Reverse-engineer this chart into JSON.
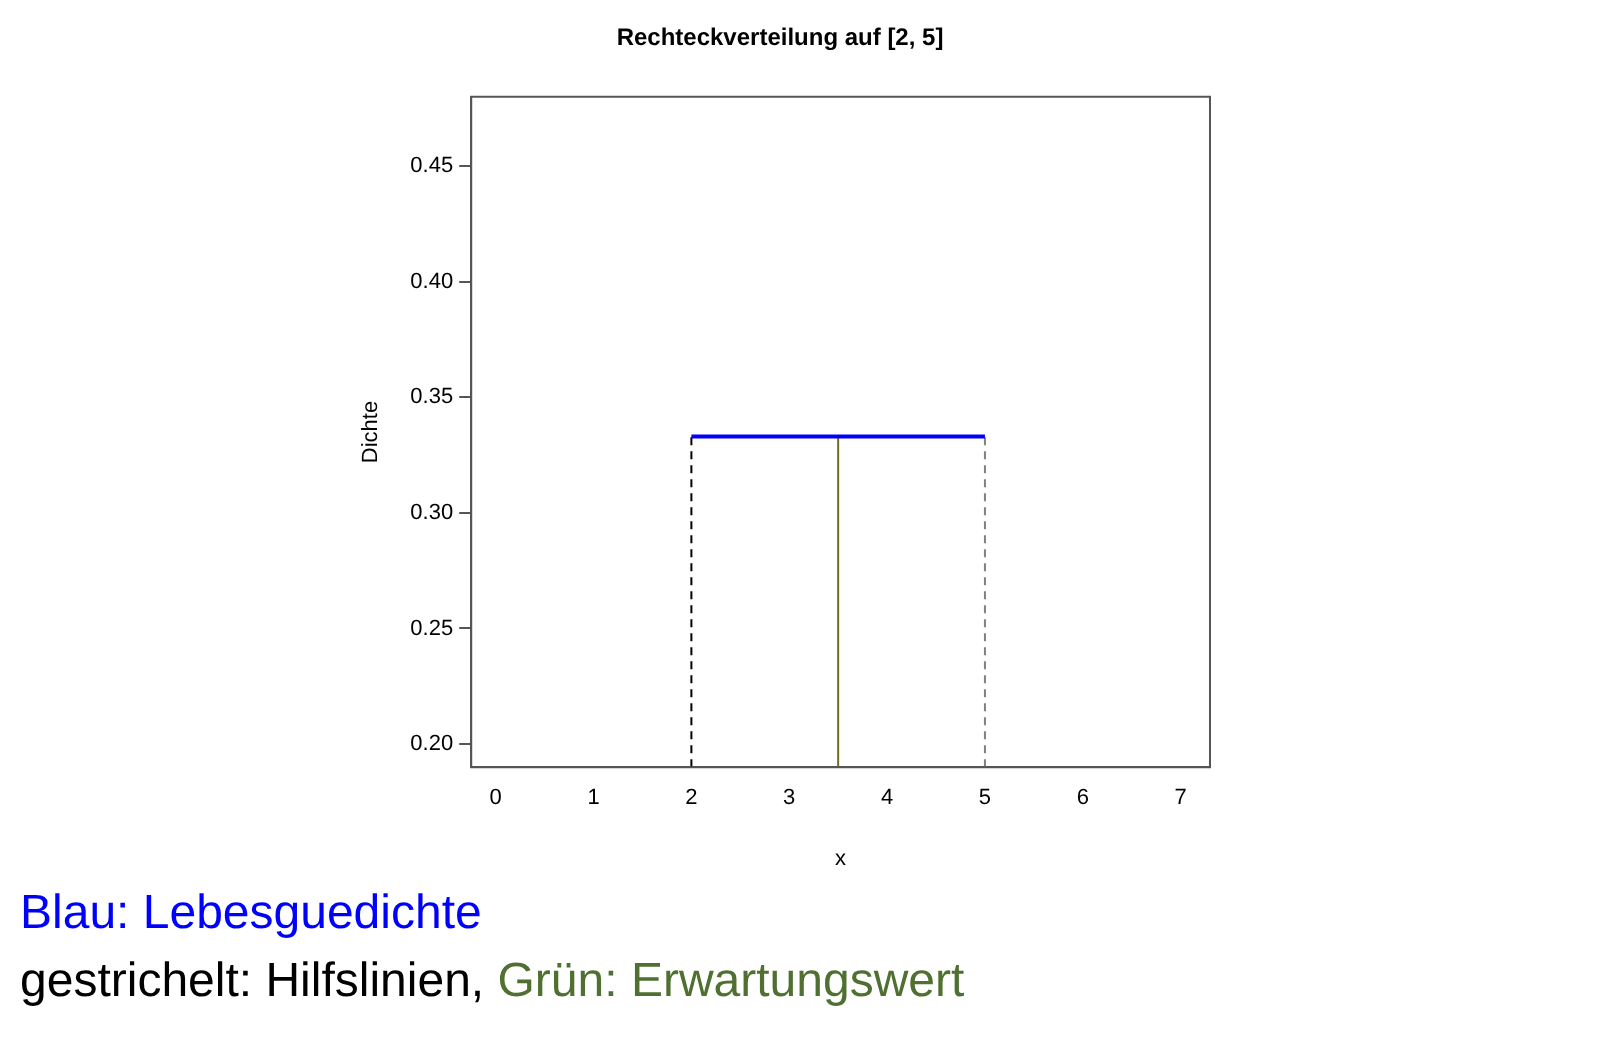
{
  "chart_data": {
    "type": "line",
    "title": "Rechteckverteilung auf [2, 5]",
    "xlabel": "x",
    "ylabel": "Dichte",
    "xlim": [
      -0.25,
      7.3
    ],
    "xticks": [
      0,
      1,
      2,
      3,
      4,
      5,
      6,
      7
    ],
    "ylim": [
      0.19,
      0.48
    ],
    "yticks": [
      {
        "value": 0.2,
        "label": "0.20"
      },
      0.25,
      {
        "value": 0.3,
        "label": "0.30"
      },
      0.35,
      {
        "value": 0.4,
        "label": "0.40"
      },
      0.45
    ],
    "grid": false,
    "legend": false,
    "marker": "none",
    "series": [
      {
        "x": [
          2,
          5
        ],
        "values": [
          0.333,
          0.333
        ],
        "color": "#0000ff",
        "line_style": "solid"
      },
      {
        "x": [
          2,
          2
        ],
        "values": [
          0.19,
          0.333
        ],
        "color": "#000000",
        "line_style": "dashed"
      },
      {
        "x": [
          5,
          5
        ],
        "values": [
          0.19,
          0.333
        ],
        "color": "#808080",
        "line_style": "dashed"
      },
      {
        "x": [
          3.5,
          3.5
        ],
        "values": [
          0.19,
          0.333
        ],
        "color": "#6f6f1f",
        "line_style": "solid"
      }
    ],
    "annotations": [
      "Blau: Lebesguedichte",
      "gestrichelt: Hilfslinien,",
      "Grün: Erwartungswert"
    ]
  }
}
